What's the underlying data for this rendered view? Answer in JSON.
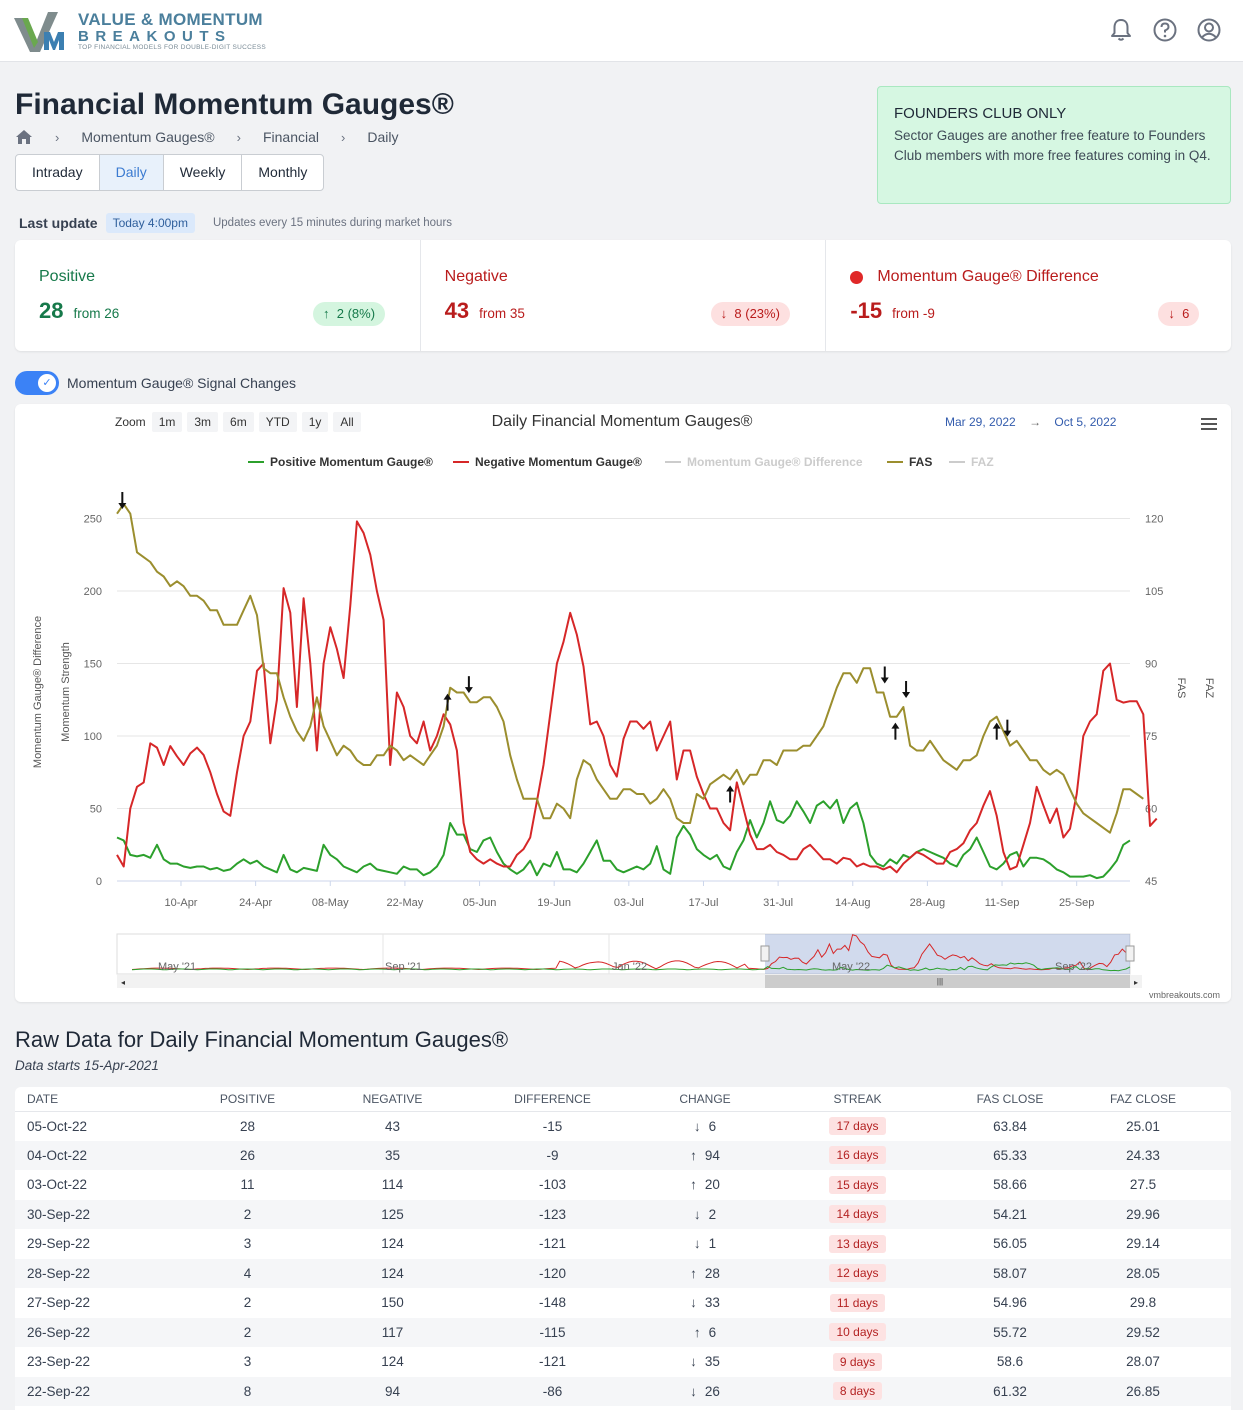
{
  "brand": {
    "line1": "VALUE & MOMENTUM",
    "line2": "BREAKOUTS",
    "tagline": "TOP FINANCIAL MODELS FOR DOUBLE-DIGIT SUCCESS"
  },
  "header_icons": [
    "bell-icon",
    "help-icon",
    "user-icon"
  ],
  "page": {
    "title": "Financial Momentum Gauges®"
  },
  "breadcrumb": {
    "items": [
      "Momentum Gauges®",
      "Financial",
      "Daily"
    ]
  },
  "tabs": [
    {
      "label": "Intraday",
      "active": false
    },
    {
      "label": "Daily",
      "active": true
    },
    {
      "label": "Weekly",
      "active": false
    },
    {
      "label": "Monthly",
      "active": false
    }
  ],
  "founders": {
    "title": "FOUNDERS CLUB ONLY",
    "body": "Sector Gauges are another free feature to Founders Club members with more free features coming in Q4."
  },
  "last_update": {
    "label": "Last update",
    "badge": "Today 4:00pm",
    "note": "Updates every 15 minutes during market hours"
  },
  "stats": {
    "positive": {
      "title": "Positive",
      "value": "28",
      "from": "from 26",
      "change": "2 (8%)",
      "color": "#16794a"
    },
    "negative": {
      "title": "Negative",
      "value": "43",
      "from": "from 35",
      "change": "8 (23%)",
      "color": "#b91c1c"
    },
    "difference": {
      "title": "Momentum Gauge® Difference",
      "value": "-15",
      "from": "from -9",
      "change": "6",
      "color": "#b91c1c"
    }
  },
  "toggle": {
    "label": "Momentum Gauge® Signal Changes",
    "on": true
  },
  "chart": {
    "zoom_label": "Zoom",
    "zoom_buttons": [
      "1m",
      "3m",
      "6m",
      "YTD",
      "1y",
      "All"
    ],
    "range_from": "Mar 29, 2022",
    "range_arrow": "→",
    "range_to": "Oct 5, 2022",
    "credit": "vmbreakouts.com",
    "navigator_labels": [
      "May '21",
      "Sep '21",
      "Jan '22",
      "May '22",
      "Sep '22"
    ]
  },
  "chart_data": {
    "type": "line",
    "title": "Daily Financial Momentum Gauges®",
    "legend": [
      "Positive Momentum Gauge®",
      "Negative Momentum Gauge®",
      "Momentum Gauge® Difference",
      "FAS",
      "FAZ"
    ],
    "hidden_series": [
      "Momentum Gauge® Difference",
      "FAZ"
    ],
    "x_ticks": [
      "10-Apr",
      "24-Apr",
      "08-May",
      "22-May",
      "05-Jun",
      "19-Jun",
      "03-Jul",
      "17-Jul",
      "31-Jul",
      "14-Aug",
      "28-Aug",
      "11-Sep",
      "25-Sep"
    ],
    "y_left_label": "Momentum Strength",
    "y_left_label2": "Momentum Gauge® Difference",
    "y_left_ticks": [
      0,
      50,
      100,
      150,
      200,
      250
    ],
    "y_left_range": [
      0,
      260
    ],
    "y_right_label": "FAS",
    "y_right_label2": "FAZ",
    "y_right_ticks": [
      45,
      60,
      75,
      90,
      105,
      120
    ],
    "y_right_range": [
      45,
      123
    ],
    "series": [
      {
        "name": "Positive Momentum Gauge®",
        "color": "#2ca02c",
        "values": [
          30,
          28,
          18,
          17,
          18,
          16,
          25,
          15,
          12,
          12,
          10,
          9,
          10,
          10,
          8,
          9,
          7,
          8,
          12,
          15,
          12,
          14,
          10,
          8,
          6,
          18,
          8,
          6,
          9,
          8,
          7,
          25,
          18,
          15,
          10,
          8,
          6,
          10,
          12,
          8,
          7,
          6,
          5,
          10,
          8,
          8,
          4,
          6,
          10,
          18,
          40,
          32,
          32,
          22,
          20,
          28,
          30,
          20,
          12,
          8,
          5,
          8,
          14,
          4,
          12,
          10,
          20,
          8,
          8,
          6,
          12,
          20,
          28,
          14,
          14,
          8,
          6,
          8,
          10,
          8,
          12,
          24,
          8,
          5,
          30,
          38,
          32,
          22,
          18,
          15,
          18,
          10,
          8,
          20,
          28,
          42,
          30,
          40,
          55,
          42,
          40,
          45,
          55,
          48,
          40,
          52,
          55,
          50,
          56,
          40,
          50,
          54,
          40,
          18,
          12,
          10,
          15,
          12,
          18,
          16,
          20,
          22,
          20,
          18,
          16,
          12,
          10,
          18,
          22,
          30,
          20,
          10,
          8,
          12,
          18,
          20,
          10,
          16,
          16,
          15,
          12,
          8,
          6,
          3,
          3,
          3,
          4,
          2,
          3,
          8,
          14,
          25,
          28
        ]
      },
      {
        "name": "Negative Momentum Gauge®",
        "color": "#d62728",
        "values": [
          18,
          10,
          50,
          65,
          68,
          95,
          92,
          80,
          93,
          86,
          80,
          88,
          92,
          87,
          75,
          60,
          48,
          45,
          75,
          100,
          110,
          145,
          150,
          95,
          125,
          202,
          185,
          120,
          195,
          150,
          90,
          150,
          175,
          160,
          140,
          190,
          248,
          240,
          225,
          200,
          180,
          80,
          130,
          120,
          100,
          95,
          110,
          90,
          100,
          115,
          108,
          90,
          40,
          20,
          15,
          12,
          15,
          12,
          10,
          10,
          18,
          22,
          30,
          55,
          80,
          115,
          150,
          165,
          185,
          170,
          148,
          108,
          110,
          100,
          80,
          72,
          98,
          110,
          110,
          105,
          110,
          90,
          100,
          110,
          70,
          90,
          90,
          72,
          60,
          50,
          50,
          40,
          35,
          68,
          50,
          32,
          22,
          22,
          25,
          20,
          18,
          15,
          15,
          22,
          25,
          20,
          15,
          15,
          12,
          16,
          15,
          10,
          12,
          10,
          10,
          8,
          10,
          6,
          12,
          16,
          20,
          18,
          15,
          12,
          12,
          20,
          22,
          26,
          35,
          40,
          52,
          62,
          45,
          20,
          8,
          10,
          25,
          40,
          65,
          52,
          40,
          50,
          30,
          36,
          60,
          100,
          110,
          115,
          145,
          150,
          125,
          123,
          124,
          124,
          115,
          38,
          43
        ]
      },
      {
        "name": "FAS",
        "color": "#9b8e2e",
        "axis": "right",
        "values": [
          121,
          123,
          121,
          113,
          112,
          111,
          109,
          108,
          106,
          107,
          106,
          104,
          104,
          103,
          101,
          101,
          98,
          98,
          98,
          101,
          104,
          100,
          89,
          88,
          88,
          83,
          79,
          76,
          74,
          77,
          83,
          77,
          74,
          71,
          73,
          72,
          70,
          69,
          69,
          71,
          71,
          73,
          72,
          70,
          71,
          70,
          69,
          71,
          73,
          77,
          85,
          84,
          84,
          82,
          82,
          83,
          83,
          81,
          78,
          71,
          66,
          62,
          62,
          62,
          58,
          58,
          61,
          60,
          58,
          66,
          70,
          69,
          66,
          64,
          62,
          62,
          64,
          64,
          63,
          63,
          61,
          62,
          64,
          62,
          58,
          57,
          57,
          63,
          62,
          65,
          66,
          67,
          66,
          68,
          65,
          67,
          67,
          70,
          70,
          69,
          72,
          72,
          72,
          73,
          73,
          75,
          77,
          81,
          85,
          88,
          88,
          86,
          89,
          89,
          84,
          84,
          79,
          79,
          81,
          73,
          72,
          72,
          74,
          72,
          70,
          69,
          68,
          70,
          70,
          71,
          75,
          78,
          79,
          76,
          73,
          74,
          72,
          70,
          70,
          68,
          67,
          68,
          67,
          64,
          61,
          59,
          58,
          57,
          56,
          55,
          59,
          64,
          64,
          63,
          62
        ]
      }
    ],
    "signal_arrows": [
      {
        "date": "30-Mar",
        "direction": "down"
      },
      {
        "date": "30-May",
        "direction": "up"
      },
      {
        "date": "03-Jun",
        "direction": "down"
      },
      {
        "date": "22-Jul",
        "direction": "up"
      },
      {
        "date": "20-Aug",
        "direction": "down"
      },
      {
        "date": "22-Aug",
        "direction": "up"
      },
      {
        "date": "24-Aug",
        "direction": "down"
      },
      {
        "date": "10-Sep",
        "direction": "up"
      },
      {
        "date": "12-Sep",
        "direction": "down"
      }
    ]
  },
  "raw": {
    "title": "Raw Data for Daily Financial Momentum Gauges®",
    "subtitle": "Data starts 15-Apr-2021",
    "columns": [
      "DATE",
      "POSITIVE",
      "NEGATIVE",
      "DIFFERENCE",
      "CHANGE",
      "STREAK",
      "FAS CLOSE",
      "FAZ CLOSE"
    ],
    "rows": [
      {
        "date": "05-Oct-22",
        "pos": "28",
        "neg": "43",
        "diff": "-15",
        "dir": "down",
        "change": "6",
        "streak": "17 days",
        "fas": "63.84",
        "faz": "25.01"
      },
      {
        "date": "04-Oct-22",
        "pos": "26",
        "neg": "35",
        "diff": "-9",
        "dir": "up",
        "change": "94",
        "streak": "16 days",
        "fas": "65.33",
        "faz": "24.33"
      },
      {
        "date": "03-Oct-22",
        "pos": "11",
        "neg": "114",
        "diff": "-103",
        "dir": "up",
        "change": "20",
        "streak": "15 days",
        "fas": "58.66",
        "faz": "27.5"
      },
      {
        "date": "30-Sep-22",
        "pos": "2",
        "neg": "125",
        "diff": "-123",
        "dir": "down",
        "change": "2",
        "streak": "14 days",
        "fas": "54.21",
        "faz": "29.96"
      },
      {
        "date": "29-Sep-22",
        "pos": "3",
        "neg": "124",
        "diff": "-121",
        "dir": "down",
        "change": "1",
        "streak": "13 days",
        "fas": "56.05",
        "faz": "29.14"
      },
      {
        "date": "28-Sep-22",
        "pos": "4",
        "neg": "124",
        "diff": "-120",
        "dir": "up",
        "change": "28",
        "streak": "12 days",
        "fas": "58.07",
        "faz": "28.05"
      },
      {
        "date": "27-Sep-22",
        "pos": "2",
        "neg": "150",
        "diff": "-148",
        "dir": "down",
        "change": "33",
        "streak": "11 days",
        "fas": "54.96",
        "faz": "29.8"
      },
      {
        "date": "26-Sep-22",
        "pos": "2",
        "neg": "117",
        "diff": "-115",
        "dir": "up",
        "change": "6",
        "streak": "10 days",
        "fas": "55.72",
        "faz": "29.52"
      },
      {
        "date": "23-Sep-22",
        "pos": "3",
        "neg": "124",
        "diff": "-121",
        "dir": "down",
        "change": "35",
        "streak": "9 days",
        "fas": "58.6",
        "faz": "28.07"
      },
      {
        "date": "22-Sep-22",
        "pos": "8",
        "neg": "94",
        "diff": "-86",
        "dir": "down",
        "change": "26",
        "streak": "8 days",
        "fas": "61.32",
        "faz": "26.85"
      }
    ]
  }
}
